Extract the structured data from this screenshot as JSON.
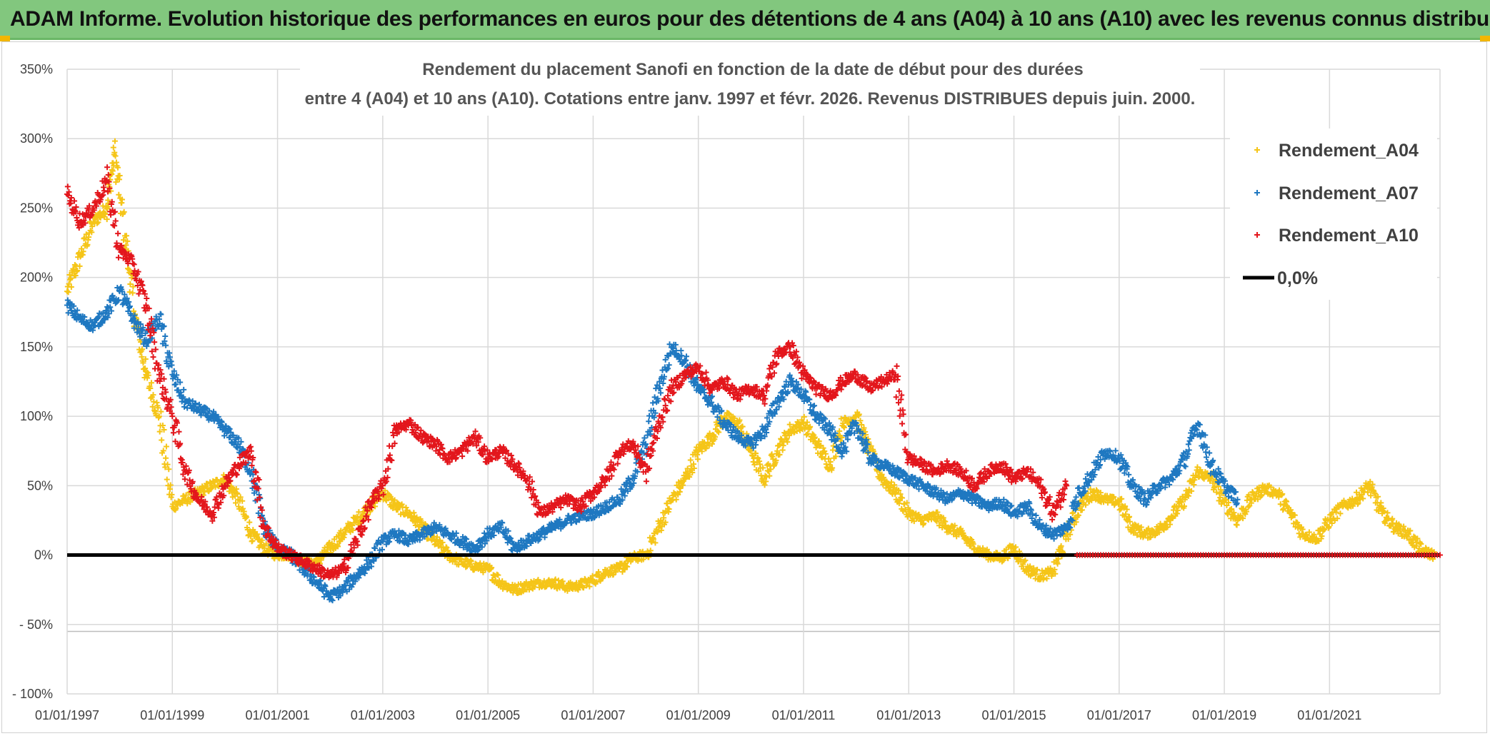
{
  "banner": {
    "title": "ADAM Informe. Evolution historique des performances en euros pour des détentions de 4 ans (A04) à 10 ans (A10) avec les revenus connus distribués"
  },
  "colors": {
    "banner_bg": "#82c77e",
    "a04": "#f5c518",
    "a07": "#1f78c1",
    "a10": "#e3161c",
    "zero": "#000000"
  },
  "chart_data": {
    "type": "scatter",
    "title_line1": "Rendement du placement Sanofi en fonction de la date de début pour des durées",
    "title_line2": "entre 4 (A04) et 10 ans (A10). Cotations entre janv. 1997 et févr. 2026. Revenus DISTRIBUES depuis juin. 2000.",
    "xlabel": "",
    "ylabel": "",
    "ylim": [
      -100,
      350
    ],
    "y_ticks": [
      -100,
      -50,
      0,
      50,
      100,
      150,
      200,
      250,
      300,
      350
    ],
    "y_tick_labels": [
      "- 100%",
      "- 50%",
      "0%",
      "50%",
      "100%",
      "150%",
      "200%",
      "250%",
      "300%",
      "350%"
    ],
    "xlim": [
      1997.0,
      2023.1
    ],
    "x_ticks": [
      1997,
      1999,
      2001,
      2003,
      2005,
      2007,
      2009,
      2011,
      2013,
      2015,
      2017,
      2019,
      2021
    ],
    "x_tick_labels": [
      "01/01/1997",
      "01/01/1999",
      "01/01/2001",
      "01/01/2003",
      "01/01/2005",
      "01/01/2007",
      "01/01/2009",
      "01/01/2011",
      "01/01/2013",
      "01/01/2015",
      "01/01/2017",
      "01/01/2019",
      "01/01/2021"
    ],
    "grid": true,
    "legend_position": "top-right",
    "series": [
      {
        "name": "Rendement_A04",
        "marker": "+",
        "x": [
          1997.0,
          1997.25,
          1997.5,
          1997.75,
          1997.9,
          1998.1,
          1998.3,
          1998.5,
          1998.75,
          1999.0,
          1999.25,
          1999.5,
          1999.75,
          2000.0,
          2000.25,
          2000.5,
          2000.75,
          2001.0,
          2001.25,
          2001.5,
          2001.75,
          2002.0,
          2002.25,
          2002.5,
          2002.75,
          2003.0,
          2003.25,
          2003.5,
          2003.75,
          2004.0,
          2004.25,
          2004.5,
          2004.75,
          2005.0,
          2005.25,
          2005.5,
          2005.75,
          2006.0,
          2006.25,
          2006.5,
          2006.75,
          2007.0,
          2007.25,
          2007.5,
          2007.75,
          2008.0,
          2008.25,
          2008.5,
          2008.75,
          2009.0,
          2009.25,
          2009.5,
          2009.75,
          2010.0,
          2010.25,
          2010.5,
          2010.75,
          2011.0,
          2011.25,
          2011.5,
          2011.75,
          2012.0,
          2012.25,
          2012.5,
          2012.75,
          2013.0,
          2013.25,
          2013.5,
          2013.75,
          2014.0,
          2014.25,
          2014.5,
          2014.75,
          2015.0,
          2015.25,
          2015.5,
          2015.75,
          2016.0,
          2016.25,
          2016.5,
          2016.75,
          2017.0,
          2017.25,
          2017.5,
          2017.75,
          2018.0,
          2018.25,
          2018.5,
          2018.75,
          2019.0,
          2019.25,
          2019.5,
          2019.75,
          2020.0,
          2020.25,
          2020.5,
          2020.75,
          2021.0,
          2021.25,
          2021.5,
          2021.75,
          2022.0,
          2022.25,
          2022.5,
          2022.75,
          2023.0
        ],
        "y": [
          190,
          215,
          240,
          250,
          290,
          230,
          170,
          130,
          100,
          35,
          40,
          45,
          50,
          55,
          40,
          15,
          5,
          0,
          0,
          -5,
          -5,
          5,
          15,
          25,
          35,
          45,
          35,
          30,
          20,
          10,
          0,
          -5,
          -8,
          -10,
          -20,
          -25,
          -22,
          -20,
          -20,
          -23,
          -22,
          -18,
          -12,
          -10,
          -2,
          0,
          20,
          40,
          55,
          75,
          85,
          100,
          95,
          75,
          55,
          75,
          90,
          95,
          80,
          65,
          95,
          100,
          75,
          55,
          45,
          30,
          25,
          28,
          20,
          15,
          5,
          0,
          -2,
          5,
          -10,
          -15,
          -12,
          15,
          35,
          45,
          40,
          38,
          20,
          15,
          18,
          28,
          40,
          60,
          55,
          38,
          25,
          40,
          48,
          45,
          30,
          15,
          12,
          25,
          35,
          40,
          50,
          30,
          20,
          15,
          3,
          0
        ]
      },
      {
        "name": "Rendement_A07",
        "marker": "+",
        "x": [
          1997.0,
          1997.25,
          1997.5,
          1997.75,
          1998.0,
          1998.25,
          1998.5,
          1998.75,
          1999.0,
          1999.25,
          1999.5,
          1999.75,
          2000.0,
          2000.25,
          2000.5,
          2000.75,
          2001.0,
          2001.25,
          2001.5,
          2001.75,
          2002.0,
          2002.25,
          2002.5,
          2002.75,
          2003.0,
          2003.25,
          2003.5,
          2003.75,
          2004.0,
          2004.25,
          2004.5,
          2004.75,
          2005.0,
          2005.25,
          2005.5,
          2005.75,
          2006.0,
          2006.25,
          2006.5,
          2006.75,
          2007.0,
          2007.25,
          2007.5,
          2007.75,
          2008.0,
          2008.25,
          2008.5,
          2008.75,
          2009.0,
          2009.25,
          2009.5,
          2009.75,
          2010.0,
          2010.25,
          2010.5,
          2010.75,
          2011.0,
          2011.25,
          2011.5,
          2011.75,
          2012.0,
          2012.25,
          2012.5,
          2012.75,
          2013.0,
          2013.25,
          2013.5,
          2013.75,
          2014.0,
          2014.25,
          2014.5,
          2014.75,
          2015.0,
          2015.25,
          2015.5,
          2015.75,
          2016.0,
          2016.25,
          2016.5,
          2016.75,
          2017.0,
          2017.25,
          2017.5,
          2017.75,
          2018.0,
          2018.25,
          2018.5,
          2018.75,
          2019.0,
          2019.25
        ],
        "y": [
          180,
          170,
          165,
          175,
          190,
          170,
          155,
          170,
          130,
          110,
          105,
          100,
          90,
          80,
          60,
          20,
          5,
          0,
          -10,
          -20,
          -30,
          -25,
          -15,
          -5,
          10,
          15,
          10,
          15,
          20,
          15,
          10,
          5,
          15,
          20,
          5,
          10,
          15,
          20,
          25,
          28,
          30,
          35,
          40,
          55,
          80,
          120,
          150,
          140,
          120,
          110,
          95,
          85,
          80,
          90,
          110,
          125,
          115,
          100,
          90,
          75,
          95,
          70,
          65,
          60,
          55,
          50,
          45,
          40,
          45,
          40,
          35,
          38,
          30,
          35,
          20,
          15,
          20,
          45,
          60,
          75,
          70,
          50,
          40,
          50,
          55,
          70,
          95,
          65,
          50,
          40
        ]
      },
      {
        "name": "Rendement_A10",
        "marker": "+",
        "x": [
          1997.0,
          1997.25,
          1997.5,
          1997.75,
          1998.0,
          1998.25,
          1998.5,
          1998.75,
          1999.0,
          1999.25,
          1999.5,
          1999.75,
          2000.0,
          2000.25,
          2000.5,
          2000.75,
          2001.0,
          2001.25,
          2001.5,
          2001.75,
          2002.0,
          2002.25,
          2002.5,
          2002.75,
          2003.0,
          2003.25,
          2003.5,
          2003.75,
          2004.0,
          2004.25,
          2004.5,
          2004.75,
          2005.0,
          2005.25,
          2005.5,
          2005.75,
          2006.0,
          2006.25,
          2006.5,
          2006.75,
          2007.0,
          2007.25,
          2007.5,
          2007.75,
          2008.0,
          2008.25,
          2008.5,
          2008.75,
          2009.0,
          2009.25,
          2009.5,
          2009.75,
          2010.0,
          2010.25,
          2010.5,
          2010.75,
          2011.0,
          2011.25,
          2011.5,
          2011.75,
          2012.0,
          2012.25,
          2012.5,
          2012.75,
          2013.0,
          2013.25,
          2013.5,
          2013.75,
          2014.0,
          2014.25,
          2014.5,
          2014.75,
          2015.0,
          2015.25,
          2015.5,
          2015.75,
          2016.0
        ],
        "y": [
          260,
          240,
          250,
          270,
          220,
          210,
          180,
          130,
          100,
          60,
          40,
          30,
          50,
          65,
          75,
          20,
          5,
          0,
          -5,
          -10,
          -15,
          -10,
          10,
          35,
          50,
          90,
          95,
          85,
          80,
          70,
          75,
          85,
          70,
          75,
          65,
          55,
          30,
          35,
          40,
          35,
          45,
          55,
          75,
          80,
          60,
          95,
          120,
          130,
          135,
          120,
          125,
          115,
          120,
          115,
          145,
          150,
          130,
          120,
          115,
          125,
          130,
          120,
          125,
          130,
          70,
          65,
          60,
          65,
          60,
          50,
          60,
          65,
          55,
          60,
          50,
          30,
          50
        ],
        "zero_run_from": 2016.2
      }
    ],
    "reference_line": {
      "name": "0,0%",
      "value": 0
    }
  }
}
